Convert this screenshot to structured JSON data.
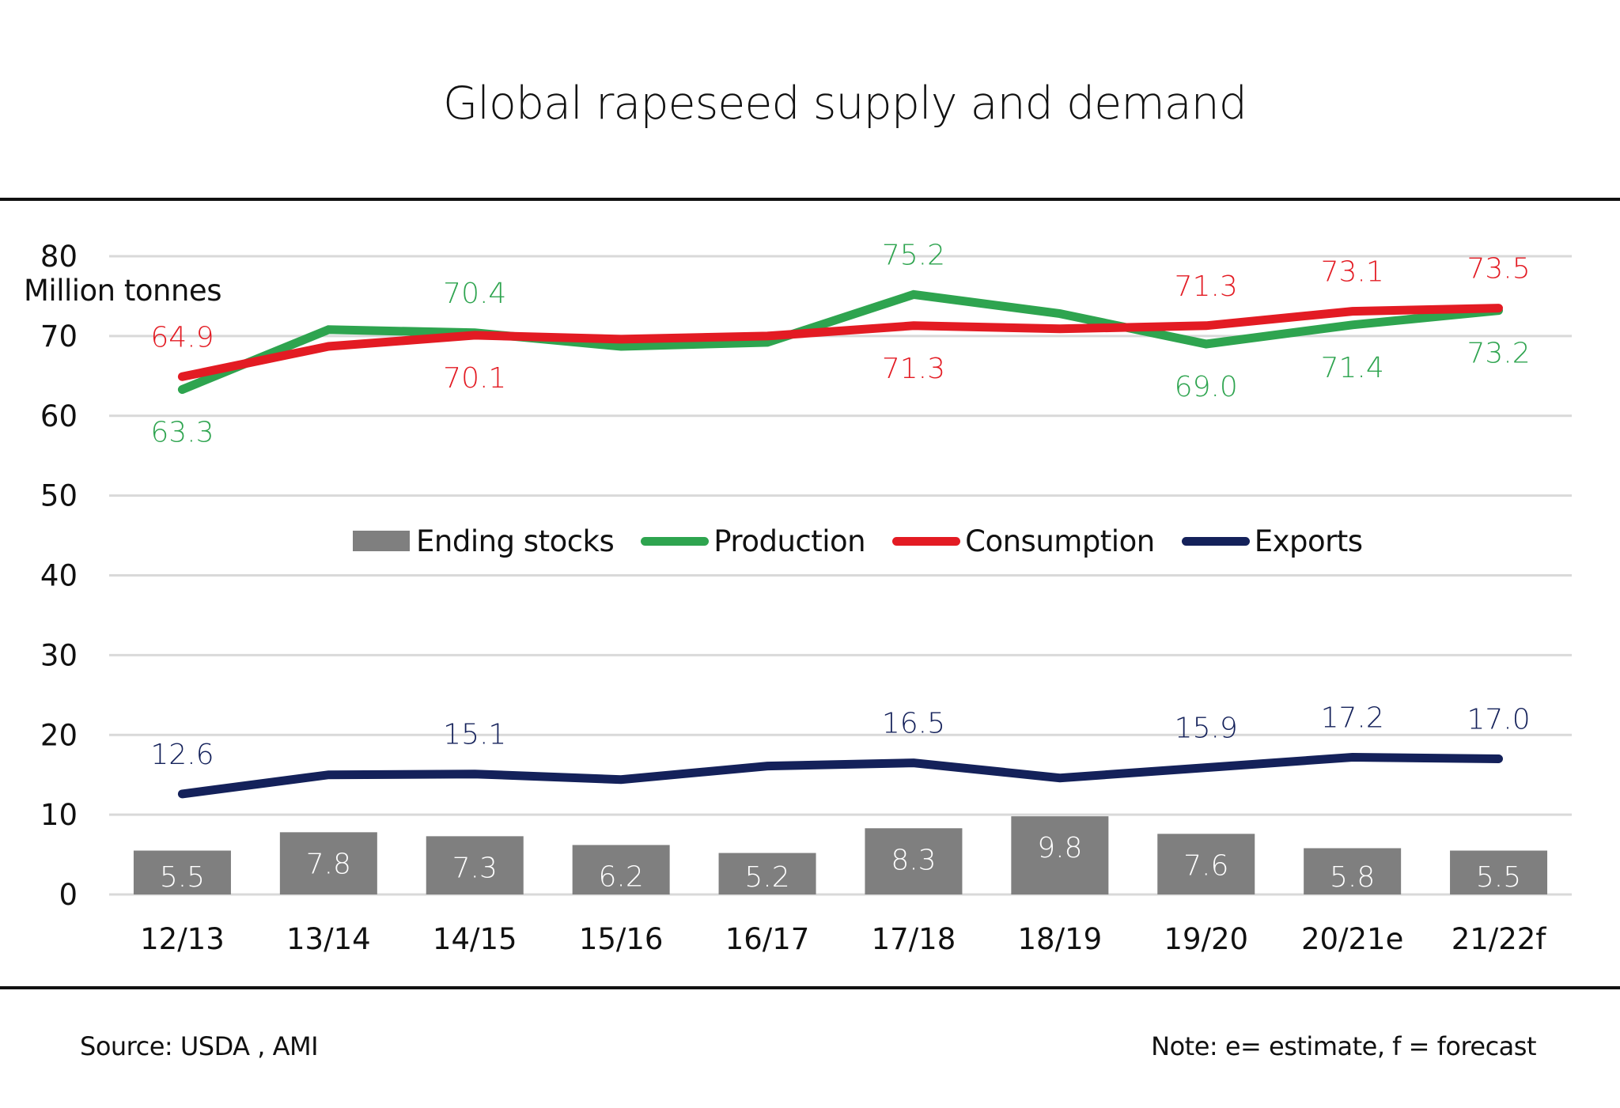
{
  "title": "Global rapeseed supply and demand",
  "footer": {
    "source": "Source: USDA , AMI",
    "note": "Note: e= estimate, f = forecast"
  },
  "colors": {
    "ending_stocks": "#7f7f7f",
    "production": "#2ea44f",
    "consumption": "#e31b23",
    "exports": "#14215a",
    "grid": "#d9d9d9",
    "text": "#111111"
  },
  "chart_data": {
    "type": "bar",
    "title": "Global rapeseed supply and demand",
    "xlabel": "",
    "ylabel": "Million tonnes",
    "ylim": [
      0,
      80
    ],
    "yticks": [
      0,
      10,
      20,
      30,
      40,
      50,
      60,
      70,
      80
    ],
    "grid": true,
    "legend_position": "center",
    "categories": [
      "12/13",
      "13/14",
      "14/15",
      "15/16",
      "16/17",
      "17/18",
      "18/19",
      "19/20",
      "20/21e",
      "21/22f"
    ],
    "series": [
      {
        "name": "Ending stocks",
        "kind": "bar",
        "color": "#7f7f7f",
        "values": [
          5.5,
          7.8,
          7.3,
          6.2,
          5.2,
          8.3,
          9.8,
          7.6,
          5.8,
          5.5
        ],
        "labels": [
          "5.5",
          "7.8",
          "7.3",
          "6.2",
          "5.2",
          "8.3",
          "9.8",
          "7.6",
          "5.8",
          "5.5"
        ]
      },
      {
        "name": "Production",
        "kind": "line",
        "color": "#2ea44f",
        "values": [
          63.3,
          70.8,
          70.4,
          68.7,
          69.2,
          75.2,
          72.8,
          69.0,
          71.4,
          73.2
        ],
        "labels": [
          "63.3",
          null,
          "70.4",
          null,
          null,
          "75.2",
          null,
          "69.0",
          "71.4",
          "73.2"
        ],
        "label_side": [
          "below",
          null,
          "above",
          null,
          null,
          "above",
          null,
          "below",
          "below",
          "below"
        ]
      },
      {
        "name": "Consumption",
        "kind": "line",
        "color": "#e31b23",
        "values": [
          64.9,
          68.7,
          70.1,
          69.6,
          70.0,
          71.3,
          70.9,
          71.3,
          73.1,
          73.5
        ],
        "labels": [
          "64.9",
          null,
          "70.1",
          null,
          null,
          "71.3",
          null,
          "71.3",
          "73.1",
          "73.5"
        ],
        "label_side": [
          "above",
          null,
          "below",
          null,
          null,
          "below",
          null,
          "above",
          "above",
          "above"
        ]
      },
      {
        "name": "Exports",
        "kind": "line",
        "color": "#14215a",
        "values": [
          12.6,
          15.0,
          15.1,
          14.4,
          16.1,
          16.5,
          14.6,
          15.9,
          17.2,
          17.0
        ],
        "labels": [
          "12.6",
          null,
          "15.1",
          null,
          null,
          "16.5",
          null,
          "15.9",
          "17.2",
          "17.0"
        ],
        "label_side": [
          "above",
          null,
          "above",
          null,
          null,
          "above",
          null,
          "above",
          "above",
          "above"
        ]
      }
    ]
  }
}
